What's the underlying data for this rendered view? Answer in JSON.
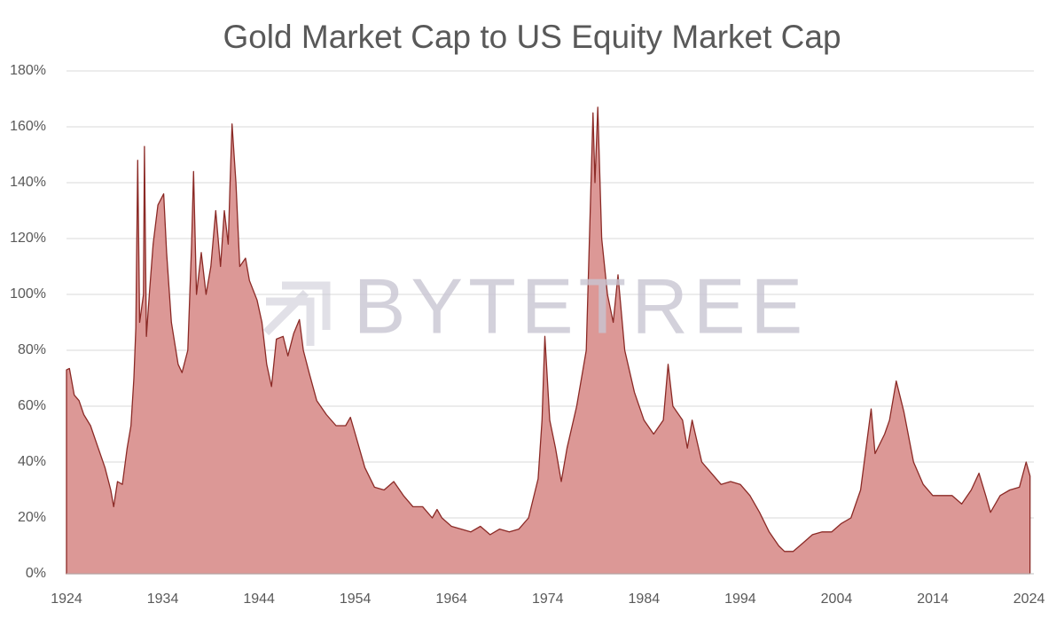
{
  "chart_data": {
    "type": "area",
    "title": "Gold Market Cap to US Equity Market Cap",
    "watermark": "BYTETREE",
    "x": [
      1924,
      1924.3,
      1924.8,
      1925.3,
      1925.8,
      1926.5,
      1927.3,
      1928,
      1928.6,
      1928.9,
      1929.3,
      1929.8,
      1930.3,
      1930.7,
      1931,
      1931.2,
      1931.4,
      1931.6,
      1932,
      1932.1,
      1932.3,
      1932.6,
      1933,
      1933.5,
      1934.1,
      1934.4,
      1934.9,
      1935.6,
      1936,
      1936.6,
      1937,
      1937.2,
      1937.5,
      1938,
      1938.5,
      1939,
      1939.5,
      1940,
      1940.4,
      1940.8,
      1941,
      1941.2,
      1941.6,
      1942,
      1942.6,
      1943,
      1943.8,
      1944.3,
      1944.8,
      1945.3,
      1945.8,
      1946.5,
      1947,
      1947.6,
      1948.2,
      1948.6,
      1949.2,
      1950,
      1951,
      1952,
      1953,
      1953.5,
      1954,
      1955,
      1956,
      1957,
      1958,
      1959,
      1960,
      1961,
      1962,
      1962.5,
      1963,
      1964,
      1965,
      1966,
      1967,
      1968,
      1969,
      1970,
      1971,
      1972,
      1973,
      1973.4,
      1973.7,
      1974.2,
      1974.8,
      1975.4,
      1976,
      1977,
      1978,
      1978.7,
      1978.9,
      1979.2,
      1979.6,
      1980.2,
      1980.8,
      1981.3,
      1982,
      1983,
      1984,
      1985,
      1986,
      1986.5,
      1987,
      1988,
      1988.5,
      1989,
      1990,
      1991,
      1992,
      1993,
      1994,
      1995,
      1996,
      1997,
      1998,
      1998.6,
      1999.5,
      2000.5,
      2001.5,
      2002.5,
      2003.5,
      2004.5,
      2005.5,
      2006.5,
      2007.6,
      2008,
      2009,
      2009.5,
      2010.2,
      2011,
      2012,
      2013,
      2014,
      2015,
      2016,
      2017,
      2018,
      2018.8,
      2019.5,
      2020,
      2021,
      2022,
      2023,
      2023.7,
      2024.1
    ],
    "series": [
      {
        "name": "Gold Market Cap to US Equity Market Cap",
        "color": "#8b2a26",
        "fill": "#dc9896",
        "values": [
          73,
          73.5,
          64,
          62,
          57,
          53,
          45,
          38,
          30,
          24,
          33,
          32,
          45,
          53,
          70,
          88,
          148,
          90,
          100,
          153,
          85,
          100,
          118,
          132,
          136,
          115,
          90,
          75,
          72,
          80,
          118,
          144,
          100,
          115,
          100,
          110,
          130,
          110,
          130,
          118,
          140,
          161,
          140,
          110,
          113,
          105,
          98,
          90,
          75,
          67,
          84,
          85,
          78,
          86,
          91,
          80,
          72,
          62,
          57,
          53,
          53,
          56,
          50,
          38,
          31,
          30,
          33,
          28,
          24,
          24,
          20,
          23,
          20,
          17,
          16,
          15,
          17,
          14,
          16,
          15,
          16,
          20,
          34,
          55,
          85,
          55,
          45,
          33,
          45,
          60,
          80,
          165,
          140,
          167,
          120,
          100,
          90,
          107,
          80,
          65,
          55,
          50,
          55,
          75,
          60,
          55,
          45,
          55,
          40,
          36,
          32,
          33,
          32,
          28,
          22,
          15,
          10,
          8,
          8,
          11,
          14,
          15,
          15,
          18,
          20,
          30,
          59,
          43,
          50,
          55,
          69,
          58,
          40,
          32,
          28,
          28,
          28,
          25,
          30,
          36,
          28,
          22,
          28,
          30,
          31,
          40,
          35
        ]
      }
    ],
    "xlim": [
      1924,
      2024.5
    ],
    "xticks": [
      1924,
      1934,
      1944,
      1954,
      1964,
      1974,
      1984,
      1994,
      2004,
      2014,
      2024
    ],
    "ylim": [
      0,
      180
    ],
    "yticks": [
      {
        "value": 0,
        "label": "0%"
      },
      {
        "value": 20,
        "label": "20%"
      },
      {
        "value": 40,
        "label": "40%"
      },
      {
        "value": 60,
        "label": "60%"
      },
      {
        "value": 80,
        "label": "80%"
      },
      {
        "value": 100,
        "label": "100%"
      },
      {
        "value": 120,
        "label": "120%"
      },
      {
        "value": 140,
        "label": "140%"
      },
      {
        "value": 160,
        "label": "160%"
      },
      {
        "value": 180,
        "label": "180%"
      }
    ],
    "grid": true
  }
}
